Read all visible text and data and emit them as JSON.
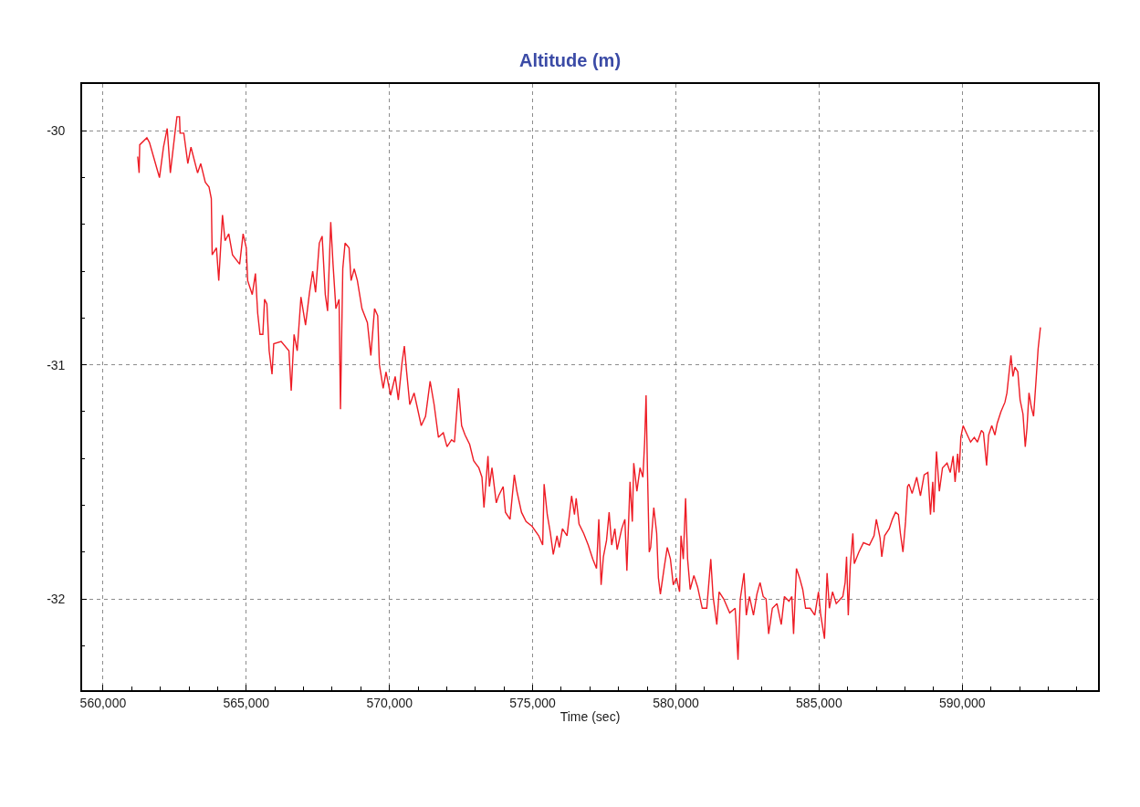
{
  "chart_data": {
    "type": "line",
    "title": "Altitude (m)",
    "xlabel": "Time (sec)",
    "xlim": [
      559270,
      594740
    ],
    "ylim": [
      -32.39,
      -29.8
    ],
    "xticks": [
      {
        "value": 560000,
        "label": "560,000"
      },
      {
        "value": 561000,
        "label": null
      },
      {
        "value": 562000,
        "label": null
      },
      {
        "value": 563000,
        "label": null
      },
      {
        "value": 564000,
        "label": null
      },
      {
        "value": 565000,
        "label": "565,000"
      },
      {
        "value": 566000,
        "label": null
      },
      {
        "value": 567000,
        "label": null
      },
      {
        "value": 568000,
        "label": null
      },
      {
        "value": 569000,
        "label": null
      },
      {
        "value": 570000,
        "label": "570,000"
      },
      {
        "value": 571000,
        "label": null
      },
      {
        "value": 572000,
        "label": null
      },
      {
        "value": 573000,
        "label": null
      },
      {
        "value": 574000,
        "label": null
      },
      {
        "value": 575000,
        "label": "575,000"
      },
      {
        "value": 576000,
        "label": null
      },
      {
        "value": 577000,
        "label": null
      },
      {
        "value": 578000,
        "label": null
      },
      {
        "value": 579000,
        "label": null
      },
      {
        "value": 580000,
        "label": "580,000"
      },
      {
        "value": 581000,
        "label": null
      },
      {
        "value": 582000,
        "label": null
      },
      {
        "value": 583000,
        "label": null
      },
      {
        "value": 584000,
        "label": null
      },
      {
        "value": 585000,
        "label": "585,000"
      },
      {
        "value": 586000,
        "label": null
      },
      {
        "value": 587000,
        "label": null
      },
      {
        "value": 588000,
        "label": null
      },
      {
        "value": 589000,
        "label": null
      },
      {
        "value": 590000,
        "label": "590,000"
      },
      {
        "value": 591000,
        "label": null
      },
      {
        "value": 592000,
        "label": null
      },
      {
        "value": 593000,
        "label": null
      },
      {
        "value": 594000,
        "label": null
      }
    ],
    "yticks": [
      -30,
      {
        "value": -30.2,
        "label": null
      },
      {
        "value": -30.4,
        "label": null
      },
      {
        "value": -30.6,
        "label": null
      },
      {
        "value": -30.8,
        "label": null
      },
      -31,
      {
        "value": -31.2,
        "label": null
      },
      {
        "value": -31.4,
        "label": null
      },
      {
        "value": -31.6,
        "label": null
      },
      {
        "value": -31.8,
        "label": null
      },
      -32,
      {
        "value": -32.2,
        "label": null
      }
    ],
    "grid": true,
    "series": [
      {
        "color": "#ee1c25",
        "x": [
          561210,
          561260,
          561280,
          561530,
          561620,
          561970,
          562110,
          562240,
          562350,
          562510,
          562580,
          562670,
          562690,
          562820,
          562960,
          563070,
          563300,
          563410,
          563570,
          563700,
          563780,
          563810,
          563960,
          564040,
          564170,
          564260,
          564390,
          564520,
          564770,
          564890,
          565000,
          565050,
          565210,
          565320,
          565400,
          565480,
          565580,
          565640,
          565720,
          565800,
          565900,
          565960,
          566220,
          566490,
          566570,
          566670,
          566780,
          566910,
          567070,
          567210,
          567320,
          567420,
          567550,
          567650,
          567760,
          567840,
          567950,
          568030,
          568130,
          568240,
          568290,
          568370,
          568450,
          568590,
          568660,
          568770,
          568880,
          569040,
          569230,
          569350,
          569480,
          569590,
          569650,
          569780,
          569880,
          570040,
          570200,
          570310,
          570440,
          570520,
          570600,
          570710,
          570860,
          570950,
          571110,
          571260,
          571420,
          571560,
          571710,
          571880,
          572010,
          572170,
          572270,
          572410,
          572520,
          572640,
          572800,
          572940,
          573120,
          573230,
          573300,
          573440,
          573490,
          573580,
          573730,
          573810,
          573970,
          574050,
          574210,
          574360,
          574450,
          574610,
          574770,
          574980,
          575210,
          575350,
          575400,
          575510,
          575620,
          575720,
          575850,
          575930,
          576040,
          576200,
          576360,
          576460,
          576520,
          576620,
          576780,
          576940,
          577100,
          577230,
          577310,
          577390,
          577470,
          577580,
          577670,
          577760,
          577870,
          577950,
          578110,
          578220,
          578290,
          578400,
          578480,
          578530,
          578640,
          578750,
          578850,
          578910,
          578960,
          579010,
          579070,
          579120,
          579230,
          579330,
          579390,
          579460,
          579600,
          579700,
          579810,
          579910,
          580020,
          580130,
          580180,
          580260,
          580340,
          580410,
          580500,
          580630,
          580760,
          580920,
          581080,
          581220,
          581300,
          581430,
          581510,
          581670,
          581880,
          582070,
          582110,
          582170,
          582250,
          582380,
          582460,
          582570,
          582710,
          582830,
          582940,
          583050,
          583150,
          583240,
          583370,
          583530,
          583680,
          583790,
          583950,
          584050,
          584110,
          584210,
          584320,
          584430,
          584530,
          584690,
          584850,
          584980,
          585060,
          585190,
          585280,
          585360,
          585470,
          585600,
          585750,
          585830,
          585910,
          585960,
          586020,
          586090,
          586180,
          586230,
          586390,
          586550,
          586760,
          586920,
          587000,
          587130,
          587190,
          587290,
          587450,
          587560,
          587670,
          587770,
          587840,
          587930,
          588020,
          588090,
          588140,
          588250,
          588410,
          588540,
          588670,
          588800,
          588890,
          588970,
          589010,
          589100,
          589200,
          589310,
          589470,
          589580,
          589680,
          589750,
          589840,
          589890,
          589950,
          590030,
          590140,
          590290,
          590420,
          590530,
          590670,
          590740,
          590850,
          590920,
          591030,
          591140,
          591220,
          591350,
          591490,
          591560,
          591620,
          591700,
          591770,
          591840,
          591940,
          592020,
          592120,
          592200,
          592260,
          592330,
          592410,
          592490,
          592580,
          592650,
          592730
        ],
        "values": [
          -30.11,
          -30.18,
          -30.06,
          -30.03,
          -30.05,
          -30.2,
          -30.07,
          -29.99,
          -30.18,
          -30.01,
          -29.94,
          -29.94,
          -30.01,
          -30.01,
          -30.14,
          -30.07,
          -30.18,
          -30.14,
          -30.22,
          -30.24,
          -30.29,
          -30.53,
          -30.5,
          -30.64,
          -30.36,
          -30.47,
          -30.44,
          -30.53,
          -30.57,
          -30.44,
          -30.5,
          -30.64,
          -30.7,
          -30.61,
          -30.78,
          -30.87,
          -30.87,
          -30.72,
          -30.74,
          -30.94,
          -31.04,
          -30.91,
          -30.9,
          -30.94,
          -31.11,
          -30.87,
          -30.94,
          -30.71,
          -30.83,
          -30.69,
          -30.6,
          -30.69,
          -30.48,
          -30.45,
          -30.7,
          -30.77,
          -30.39,
          -30.57,
          -30.76,
          -30.72,
          -31.19,
          -30.59,
          -30.48,
          -30.5,
          -30.64,
          -30.59,
          -30.64,
          -30.76,
          -30.82,
          -30.96,
          -30.76,
          -30.79,
          -31.0,
          -31.1,
          -31.03,
          -31.13,
          -31.05,
          -31.15,
          -30.99,
          -30.92,
          -31.03,
          -31.17,
          -31.12,
          -31.17,
          -31.26,
          -31.22,
          -31.07,
          -31.17,
          -31.31,
          -31.29,
          -31.35,
          -31.32,
          -31.33,
          -31.1,
          -31.26,
          -31.3,
          -31.34,
          -31.41,
          -31.44,
          -31.48,
          -31.61,
          -31.39,
          -31.52,
          -31.44,
          -31.59,
          -31.56,
          -31.52,
          -31.63,
          -31.66,
          -31.47,
          -31.54,
          -31.63,
          -31.67,
          -31.69,
          -31.73,
          -31.77,
          -31.51,
          -31.64,
          -31.72,
          -31.81,
          -31.73,
          -31.78,
          -31.7,
          -31.73,
          -31.56,
          -31.64,
          -31.57,
          -31.68,
          -31.72,
          -31.77,
          -31.83,
          -31.87,
          -31.66,
          -31.94,
          -31.82,
          -31.75,
          -31.63,
          -31.77,
          -31.7,
          -31.79,
          -31.7,
          -31.66,
          -31.88,
          -31.5,
          -31.67,
          -31.42,
          -31.54,
          -31.44,
          -31.48,
          -31.33,
          -31.13,
          -31.46,
          -31.8,
          -31.78,
          -31.61,
          -31.72,
          -31.91,
          -31.98,
          -31.86,
          -31.78,
          -31.83,
          -31.94,
          -31.91,
          -31.97,
          -31.73,
          -31.83,
          -31.57,
          -31.83,
          -31.96,
          -31.9,
          -31.95,
          -32.04,
          -32.04,
          -31.83,
          -31.99,
          -32.11,
          -31.97,
          -32.0,
          -32.06,
          -32.04,
          -32.12,
          -32.26,
          -32.0,
          -31.89,
          -32.07,
          -31.99,
          -32.07,
          -31.98,
          -31.93,
          -31.99,
          -32.0,
          -32.15,
          -32.04,
          -32.02,
          -32.11,
          -31.99,
          -32.01,
          -31.99,
          -32.15,
          -31.87,
          -31.91,
          -31.96,
          -32.04,
          -32.04,
          -32.07,
          -31.97,
          -32.07,
          -32.17,
          -31.89,
          -32.04,
          -31.97,
          -32.02,
          -32.0,
          -31.99,
          -31.93,
          -31.82,
          -32.07,
          -31.86,
          -31.72,
          -31.85,
          -31.8,
          -31.76,
          -31.77,
          -31.73,
          -31.66,
          -31.74,
          -31.82,
          -31.73,
          -31.7,
          -31.66,
          -31.63,
          -31.64,
          -31.72,
          -31.8,
          -31.67,
          -31.52,
          -31.51,
          -31.55,
          -31.48,
          -31.56,
          -31.47,
          -31.46,
          -31.64,
          -31.5,
          -31.63,
          -31.37,
          -31.54,
          -31.44,
          -31.42,
          -31.46,
          -31.39,
          -31.5,
          -31.38,
          -31.46,
          -31.31,
          -31.26,
          -31.29,
          -31.33,
          -31.31,
          -31.33,
          -31.28,
          -31.29,
          -31.43,
          -31.3,
          -31.26,
          -31.3,
          -31.25,
          -31.2,
          -31.16,
          -31.12,
          -31.05,
          -30.96,
          -31.05,
          -31.01,
          -31.03,
          -31.15,
          -31.21,
          -31.35,
          -31.27,
          -31.12,
          -31.18,
          -31.22,
          -31.06,
          -30.93,
          -30.84
        ]
      }
    ]
  }
}
